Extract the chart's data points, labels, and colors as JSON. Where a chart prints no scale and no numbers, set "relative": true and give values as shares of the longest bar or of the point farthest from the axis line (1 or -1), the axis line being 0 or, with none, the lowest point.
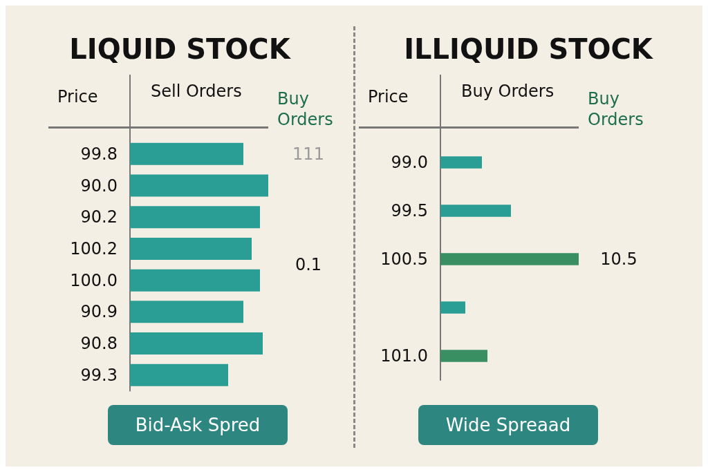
{
  "chart_data": [
    {
      "type": "bar",
      "orientation": "horizontal",
      "relative": true,
      "title": "LIQUID STOCK",
      "ylabel": "Price",
      "xlabel": "Sell Orders",
      "y2label": "Buy Orders",
      "categories": [
        "99.8",
        "90.0",
        "90.2",
        "100.2",
        "100.0",
        "90.9",
        "90.8",
        "99.3"
      ],
      "values": [
        0.82,
        1,
        0.94,
        0.88,
        0.94,
        0.82,
        0.96,
        0.71
      ],
      "color": "#2a9d94",
      "annotations": [
        "111",
        "0.1",
        "Bid-Ask Spred"
      ]
    },
    {
      "type": "bar",
      "orientation": "horizontal",
      "relative": true,
      "title": "ILLIQUID STOCK",
      "ylabel": "Price",
      "xlabel": "Buy Orders",
      "y2label": "Buy Orders",
      "categories": [
        "99.0",
        "99.5",
        "100.5",
        null,
        "101.0"
      ],
      "values": [
        0.3,
        0.51,
        1,
        0.18,
        0.34
      ],
      "colors": [
        "#2a9d94",
        "#2a9d94",
        "#3a8f62",
        "#2a9d94",
        "#3a8f62"
      ],
      "annotations": [
        "10.5",
        "Wide Spreaad"
      ]
    }
  ]
}
